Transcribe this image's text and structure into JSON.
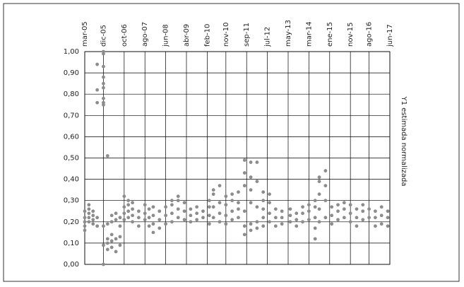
{
  "chart_data": {
    "type": "scatter",
    "y_label": "Y1 estimada normalizada",
    "color": "#8c8c8c",
    "xlim": [
      0,
      147
    ],
    "xticks": [
      {
        "value": 0,
        "label": "mar-05"
      },
      {
        "value": 9,
        "label": "dic-05"
      },
      {
        "value": 19,
        "label": "oct-06"
      },
      {
        "value": 29,
        "label": "ago-07"
      },
      {
        "value": 39,
        "label": "jun-08"
      },
      {
        "value": 49,
        "label": "abr-09"
      },
      {
        "value": 59,
        "label": "feb-10"
      },
      {
        "value": 68,
        "label": "nov-10"
      },
      {
        "value": 78,
        "label": "sep-11"
      },
      {
        "value": 88,
        "label": "jul-12"
      },
      {
        "value": 98,
        "label": "may-13"
      },
      {
        "value": 108,
        "label": "mar-14"
      },
      {
        "value": 118,
        "label": "ene-15"
      },
      {
        "value": 128,
        "label": "nov-15"
      },
      {
        "value": 137,
        "label": "ago-16"
      },
      {
        "value": 147,
        "label": "jun-17"
      }
    ],
    "ylim": [
      0,
      1
    ],
    "yticks": [
      {
        "value": 0,
        "label": "0,00"
      },
      {
        "value": 0.1,
        "label": "0,10"
      },
      {
        "value": 0.2,
        "label": "0,20"
      },
      {
        "value": 0.3,
        "label": "0,30"
      },
      {
        "value": 0.4,
        "label": "0,40"
      },
      {
        "value": 0.5,
        "label": "0,50"
      },
      {
        "value": 0.6,
        "label": "0,60"
      },
      {
        "value": 0.7,
        "label": "0,70"
      },
      {
        "value": 0.8,
        "label": "0,80"
      },
      {
        "value": 0.9,
        "label": "0,90"
      },
      {
        "value": 1,
        "label": "1,00"
      }
    ],
    "grid": true,
    "x": [
      0,
      0,
      0,
      0,
      0,
      2,
      2,
      2,
      2,
      2,
      4,
      4,
      4,
      4,
      6,
      6,
      6,
      6,
      6,
      9,
      9,
      9,
      9,
      9,
      9,
      9,
      9,
      9,
      9,
      9,
      9,
      11,
      11,
      11,
      11,
      11,
      13,
      13,
      13,
      13,
      13,
      15,
      15,
      15,
      15,
      17,
      17,
      17,
      17,
      19,
      19,
      19,
      19,
      21,
      21,
      21,
      21,
      23,
      23,
      23,
      23,
      26,
      26,
      26,
      29,
      29,
      29,
      31,
      31,
      31,
      33,
      33,
      33,
      33,
      36,
      36,
      36,
      39,
      39,
      39,
      42,
      42,
      42,
      42,
      45,
      45,
      45,
      45,
      48,
      48,
      48,
      51,
      51,
      51,
      54,
      54,
      54,
      57,
      57,
      60,
      60,
      60,
      60,
      62,
      62,
      62,
      62,
      65,
      65,
      65,
      65,
      68,
      68,
      68,
      68,
      71,
      71,
      71,
      71,
      74,
      74,
      74,
      74,
      77,
      77,
      77,
      77,
      77,
      77,
      80,
      80,
      80,
      80,
      80,
      80,
      83,
      83,
      83,
      83,
      83,
      86,
      86,
      86,
      86,
      86,
      89,
      89,
      89,
      89,
      92,
      92,
      92,
      95,
      95,
      95,
      99,
      99,
      99,
      102,
      102,
      102,
      105,
      105,
      105,
      108,
      108,
      108,
      111,
      111,
      111,
      111,
      111,
      113,
      113,
      113,
      113,
      113,
      116,
      116,
      116,
      116,
      119,
      119,
      119,
      122,
      122,
      122,
      125,
      125,
      125,
      128,
      128,
      128,
      131,
      131,
      131,
      134,
      134,
      134,
      137,
      137,
      140,
      140,
      140,
      143,
      143,
      143,
      146,
      146,
      146
    ],
    "values": [
      0.16,
      0.18,
      0.2,
      0.22,
      0.25,
      0.2,
      0.22,
      0.24,
      0.26,
      0.28,
      0.19,
      0.21,
      0.23,
      0.25,
      0.94,
      0.82,
      0.76,
      0.18,
      0.22,
      1.0,
      0.99,
      0.93,
      0.88,
      0.85,
      0.83,
      0.78,
      0.76,
      0.75,
      0.18,
      0.09,
      0.0,
      0.51,
      0.19,
      0.12,
      0.1,
      0.07,
      0.14,
      0.11,
      0.08,
      0.2,
      0.23,
      0.24,
      0.21,
      0.12,
      0.06,
      0.22,
      0.18,
      0.13,
      0.09,
      0.21,
      0.24,
      0.27,
      0.32,
      0.22,
      0.25,
      0.28,
      0.3,
      0.2,
      0.23,
      0.26,
      0.29,
      0.18,
      0.22,
      0.25,
      0.21,
      0.24,
      0.28,
      0.18,
      0.22,
      0.26,
      0.15,
      0.19,
      0.23,
      0.27,
      0.17,
      0.21,
      0.25,
      0.19,
      0.23,
      0.27,
      0.2,
      0.24,
      0.28,
      0.3,
      0.22,
      0.26,
      0.3,
      0.32,
      0.21,
      0.25,
      0.29,
      0.2,
      0.23,
      0.26,
      0.21,
      0.24,
      0.27,
      0.22,
      0.25,
      0.19,
      0.23,
      0.27,
      0.3,
      0.22,
      0.27,
      0.35,
      0.33,
      0.2,
      0.24,
      0.29,
      0.37,
      0.19,
      0.23,
      0.28,
      0.32,
      0.21,
      0.25,
      0.3,
      0.33,
      0.22,
      0.26,
      0.29,
      0.34,
      0.14,
      0.18,
      0.25,
      0.37,
      0.43,
      0.49,
      0.16,
      0.19,
      0.29,
      0.35,
      0.41,
      0.48,
      0.17,
      0.2,
      0.27,
      0.39,
      0.48,
      0.18,
      0.22,
      0.26,
      0.3,
      0.34,
      0.2,
      0.24,
      0.29,
      0.33,
      0.18,
      0.22,
      0.26,
      0.19,
      0.22,
      0.25,
      0.2,
      0.23,
      0.26,
      0.18,
      0.21,
      0.24,
      0.2,
      0.24,
      0.27,
      0.21,
      0.25,
      0.28,
      0.12,
      0.17,
      0.22,
      0.27,
      0.3,
      0.2,
      0.26,
      0.33,
      0.39,
      0.41,
      0.22,
      0.3,
      0.37,
      0.44,
      0.19,
      0.23,
      0.27,
      0.21,
      0.25,
      0.28,
      0.22,
      0.26,
      0.29,
      0.2,
      0.24,
      0.28,
      0.18,
      0.22,
      0.26,
      0.21,
      0.25,
      0.28,
      0.22,
      0.26,
      0.18,
      0.22,
      0.25,
      0.19,
      0.23,
      0.27,
      0.18,
      0.22,
      0.25
    ]
  }
}
